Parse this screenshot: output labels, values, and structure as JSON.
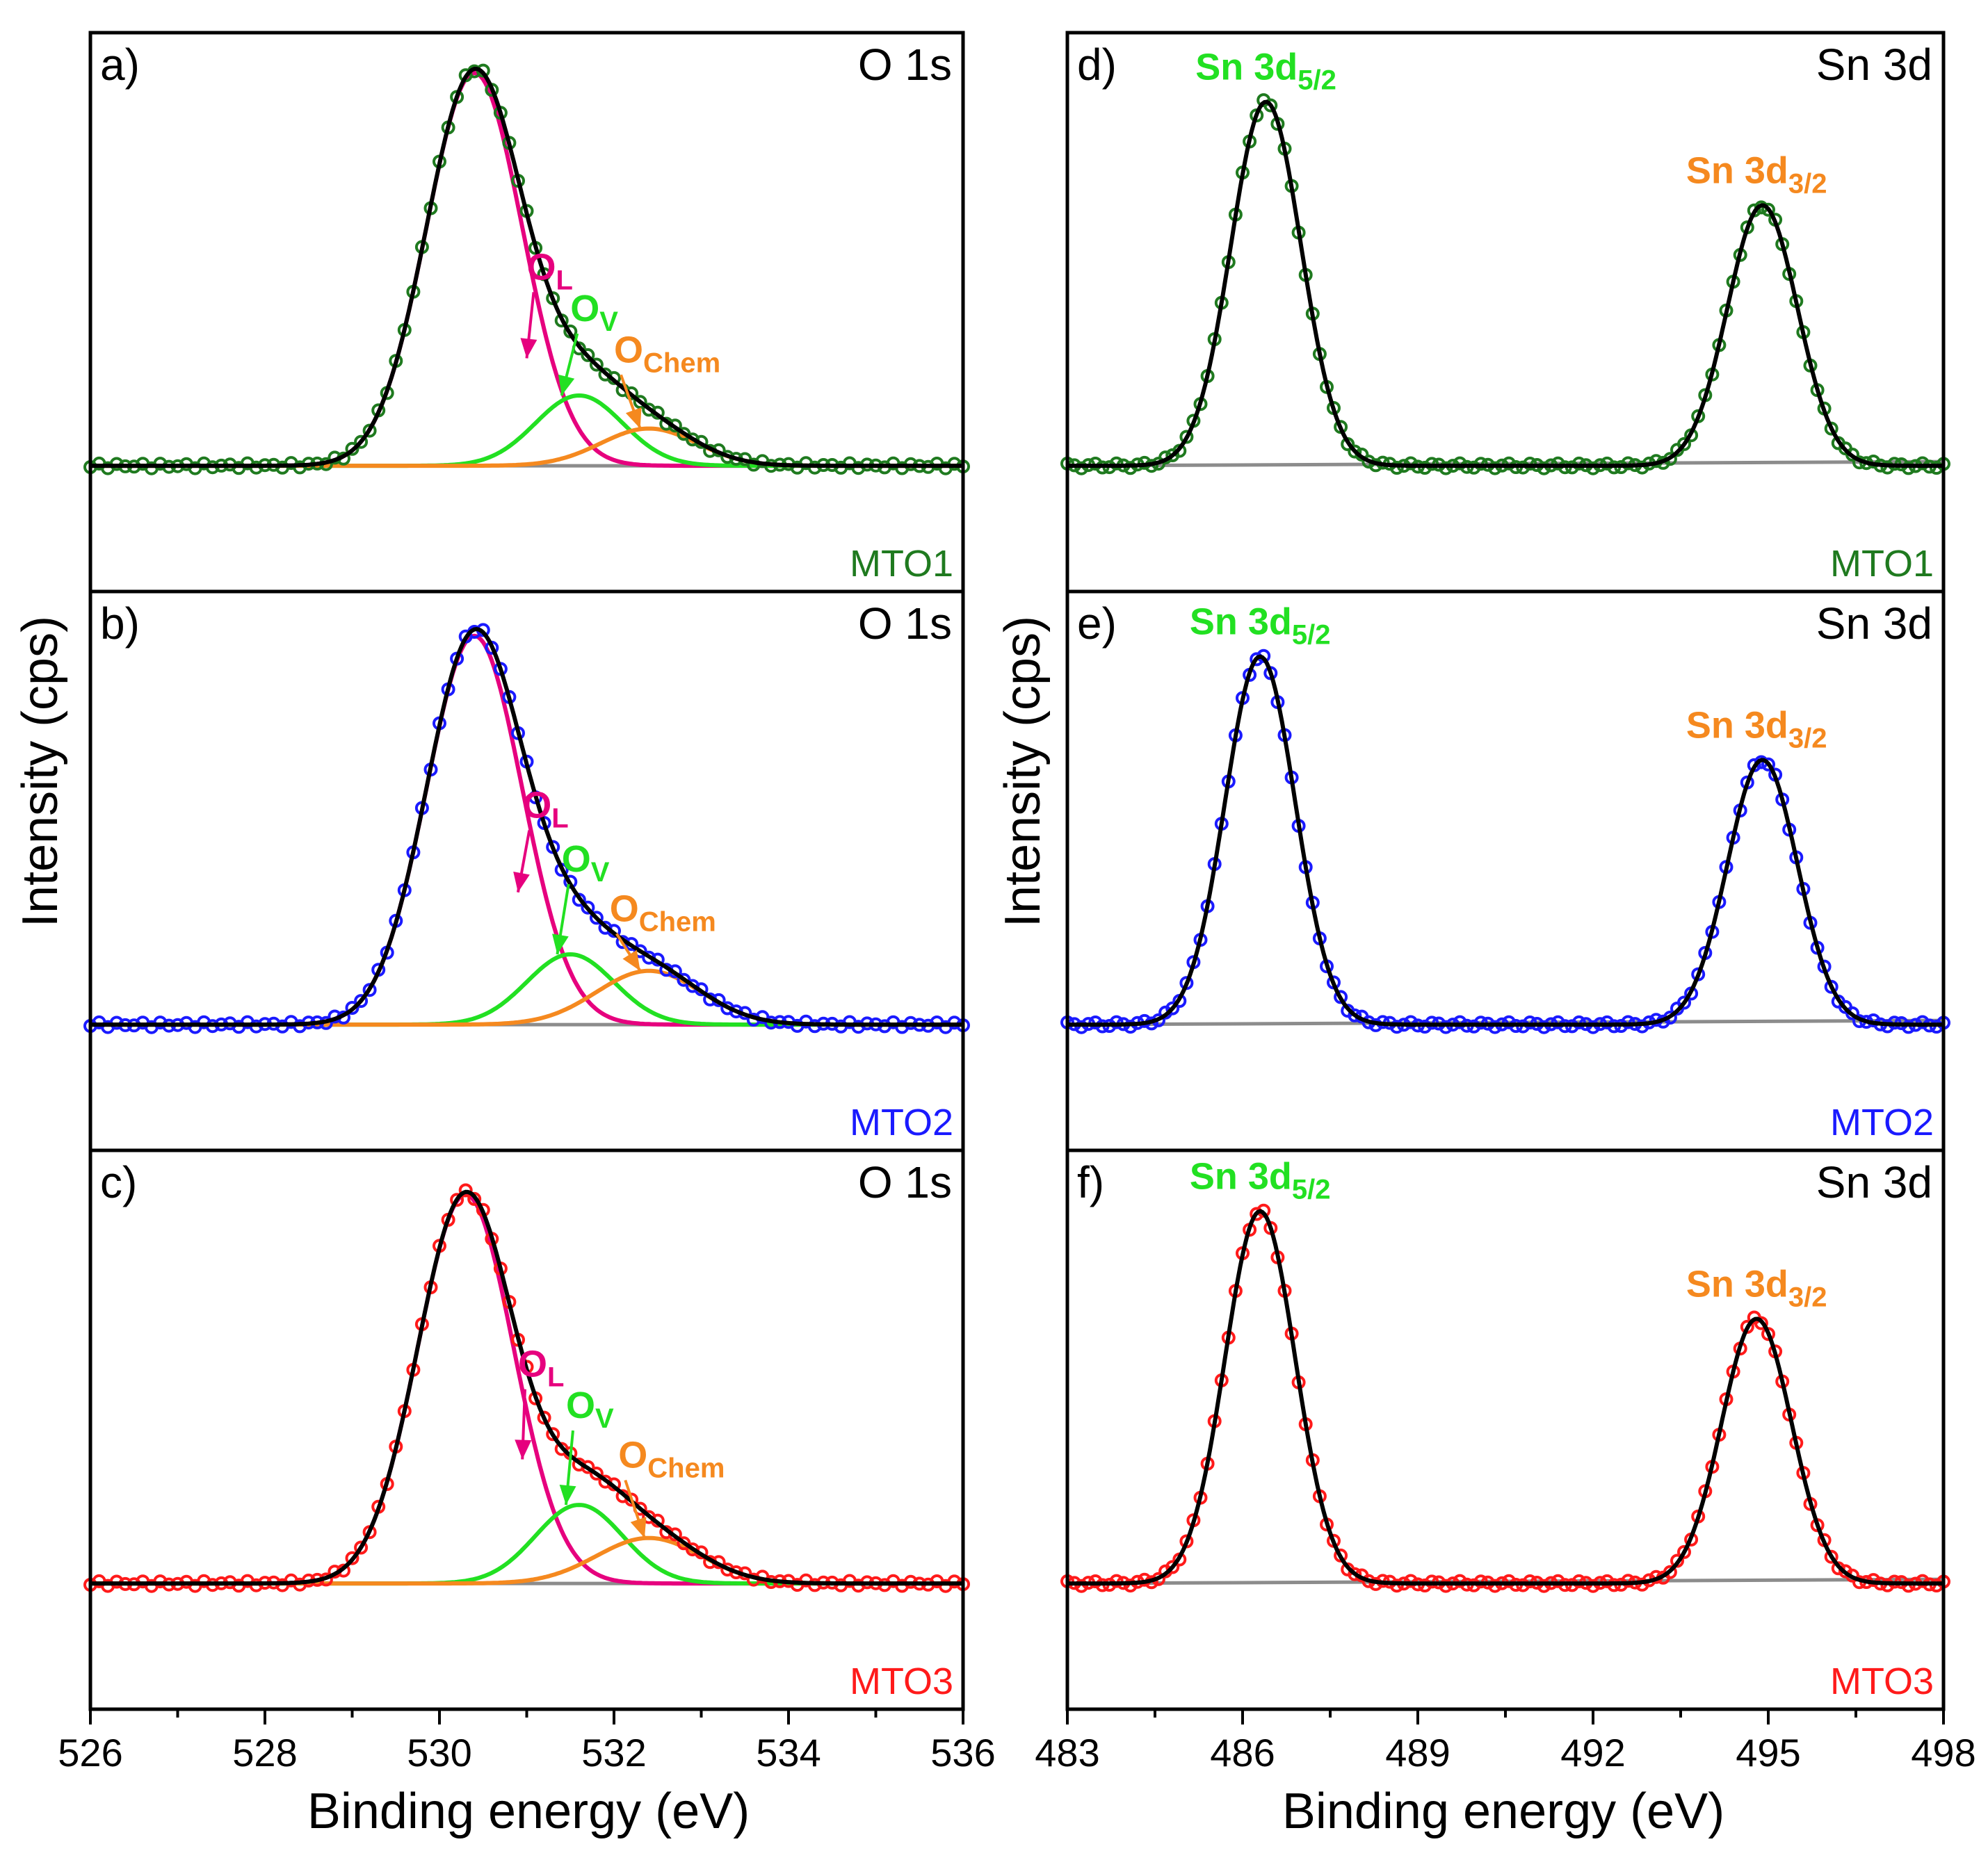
{
  "colors": {
    "MTO1": "#1f7a1f",
    "MTO2": "#1a1aff",
    "MTO3": "#ff1a1a",
    "OL": "#e6007e",
    "OV": "#22e022",
    "OChem": "#f5891f",
    "fit": "#000000",
    "background_line": "#8c8c8c",
    "Sn5": "#22e022",
    "Sn3": "#f5891f"
  },
  "y_axis_title": "Intensity (cps)",
  "chart_data": [
    {
      "type": "line",
      "panel": "a)",
      "title": "O 1s",
      "sample": "MTO1",
      "xlabel": "Binding energy (eV)",
      "xlim": [
        526,
        536
      ],
      "xticks": [
        "526",
        "528",
        "530",
        "532",
        "534",
        "536"
      ],
      "components": [
        {
          "name": "OL",
          "label": "O",
          "sub": "L",
          "center": 530.4,
          "height": 0.95,
          "sigma": 0.55
        },
        {
          "name": "OV",
          "label": "O",
          "sub": "V",
          "center": 531.6,
          "height": 0.17,
          "sigma": 0.5
        },
        {
          "name": "OChem",
          "label": "O",
          "sub": "Chem",
          "center": 532.4,
          "height": 0.09,
          "sigma": 0.55
        }
      ],
      "annotations": [
        {
          "name": "OL",
          "label_x": 531.0,
          "label_y": 0.45,
          "arrow_to_x": 531.0,
          "arrow_to_y": 0.26
        },
        {
          "name": "OV",
          "label_x": 531.5,
          "label_y": 0.35,
          "arrow_to_x": 531.4,
          "arrow_to_y": 0.17
        },
        {
          "name": "OChem",
          "label_x": 532.0,
          "label_y": 0.25,
          "arrow_to_x": 532.3,
          "arrow_to_y": 0.09
        }
      ]
    },
    {
      "type": "line",
      "panel": "b)",
      "title": "O 1s",
      "sample": "MTO2",
      "xlabel": "Binding energy (eV)",
      "xlim": [
        526,
        536
      ],
      "xticks": [
        "526",
        "528",
        "530",
        "532",
        "534",
        "536"
      ],
      "components": [
        {
          "name": "OL",
          "label": "O",
          "sub": "L",
          "center": 530.4,
          "height": 0.94,
          "sigma": 0.55
        },
        {
          "name": "OV",
          "label": "O",
          "sub": "V",
          "center": 531.5,
          "height": 0.17,
          "sigma": 0.5
        },
        {
          "name": "OChem",
          "label": "O",
          "sub": "Chem",
          "center": 532.4,
          "height": 0.13,
          "sigma": 0.6
        }
      ],
      "annotations": [
        {
          "name": "OL",
          "label_x": 530.95,
          "label_y": 0.5,
          "arrow_to_x": 530.9,
          "arrow_to_y": 0.32
        },
        {
          "name": "OV",
          "label_x": 531.4,
          "label_y": 0.37,
          "arrow_to_x": 531.35,
          "arrow_to_y": 0.17
        },
        {
          "name": "OChem",
          "label_x": 531.95,
          "label_y": 0.25,
          "arrow_to_x": 532.3,
          "arrow_to_y": 0.13
        }
      ]
    },
    {
      "type": "line",
      "panel": "c)",
      "title": "O 1s",
      "sample": "MTO3",
      "xlabel": "Binding energy (eV)",
      "xlim": [
        526,
        536
      ],
      "xticks": [
        "526",
        "528",
        "530",
        "532",
        "534",
        "536"
      ],
      "components": [
        {
          "name": "OL",
          "label": "O",
          "sub": "L",
          "center": 530.3,
          "height": 0.94,
          "sigma": 0.55
        },
        {
          "name": "OV",
          "label": "O",
          "sub": "V",
          "center": 531.6,
          "height": 0.19,
          "sigma": 0.5
        },
        {
          "name": "OChem",
          "label": "O",
          "sub": "Chem",
          "center": 532.4,
          "height": 0.11,
          "sigma": 0.6
        }
      ],
      "annotations": [
        {
          "name": "OL",
          "label_x": 530.9,
          "label_y": 0.5,
          "arrow_to_x": 530.95,
          "arrow_to_y": 0.3
        },
        {
          "name": "OV",
          "label_x": 531.45,
          "label_y": 0.4,
          "arrow_to_x": 531.45,
          "arrow_to_y": 0.19
        },
        {
          "name": "OChem",
          "label_x": 532.05,
          "label_y": 0.28,
          "arrow_to_x": 532.35,
          "arrow_to_y": 0.11
        }
      ]
    },
    {
      "type": "line",
      "panel": "d)",
      "title": "Sn 3d",
      "sample": "MTO1",
      "xlabel": "Binding energy (eV)",
      "xlim": [
        483,
        498
      ],
      "xticks": [
        "483",
        "486",
        "489",
        "492",
        "495",
        "498"
      ],
      "peaks": [
        {
          "name": "Sn5",
          "label": "Sn 3d",
          "sub": "5/2",
          "center": 486.4,
          "height": 0.88,
          "sigma": 0.6,
          "label_x": 486.4
        },
        {
          "name": "Sn3",
          "label": "Sn 3d",
          "sub": "3/2",
          "center": 494.9,
          "height": 0.63,
          "sigma": 0.6,
          "label_x": 494.8
        }
      ]
    },
    {
      "type": "line",
      "panel": "e)",
      "title": "Sn 3d",
      "sample": "MTO2",
      "xlabel": "Binding energy (eV)",
      "xlim": [
        483,
        498
      ],
      "xticks": [
        "483",
        "486",
        "489",
        "492",
        "495",
        "498"
      ],
      "peaks": [
        {
          "name": "Sn5",
          "label": "Sn 3d",
          "sub": "5/2",
          "center": 486.3,
          "height": 0.89,
          "sigma": 0.6,
          "label_x": 486.3
        },
        {
          "name": "Sn3",
          "label": "Sn 3d",
          "sub": "3/2",
          "center": 494.9,
          "height": 0.64,
          "sigma": 0.6,
          "label_x": 494.8
        }
      ]
    },
    {
      "type": "line",
      "panel": "f)",
      "title": "Sn 3d",
      "sample": "MTO3",
      "xlabel": "Binding energy (eV)",
      "xlim": [
        483,
        498
      ],
      "xticks": [
        "483",
        "486",
        "489",
        "492",
        "495",
        "498"
      ],
      "peaks": [
        {
          "name": "Sn5",
          "label": "Sn 3d",
          "sub": "5/2",
          "center": 486.3,
          "height": 0.9,
          "sigma": 0.6,
          "label_x": 486.3
        },
        {
          "name": "Sn3",
          "label": "Sn 3d",
          "sub": "3/2",
          "center": 494.8,
          "height": 0.64,
          "sigma": 0.6,
          "label_x": 494.8
        }
      ]
    }
  ]
}
